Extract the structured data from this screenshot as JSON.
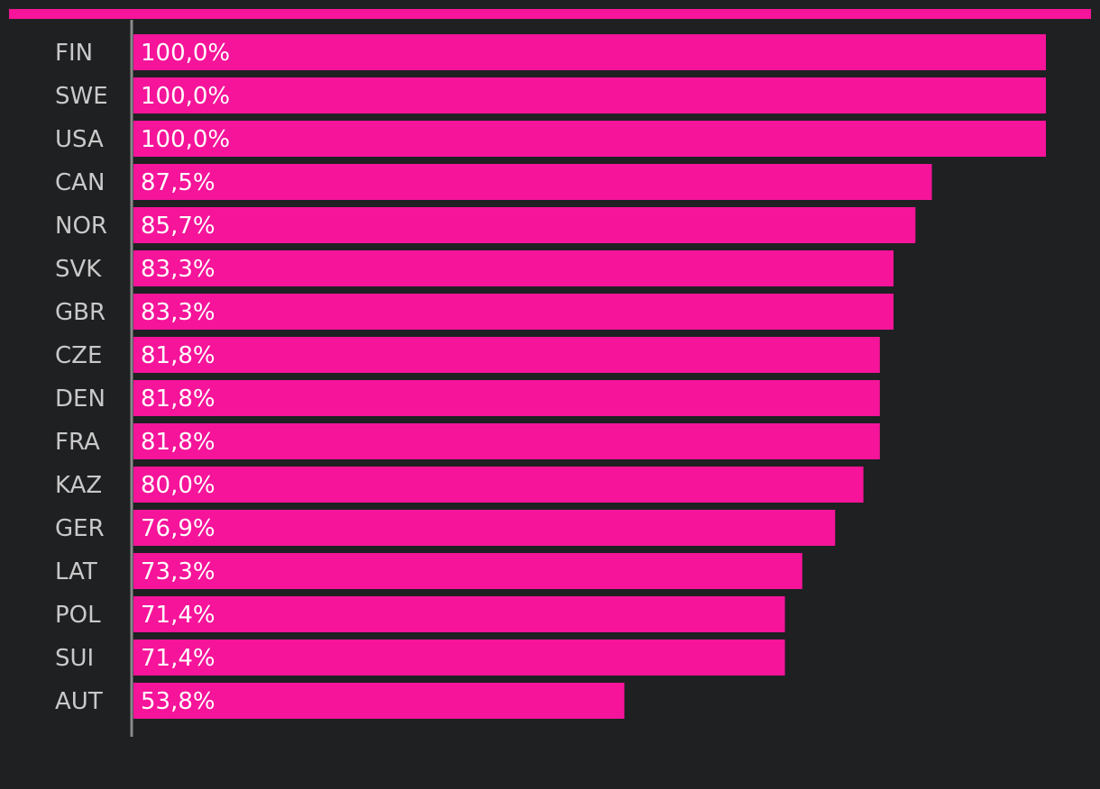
{
  "colors": {
    "background": "#1f2022",
    "bar": "#f5149a",
    "axis": "#8a8a8a",
    "category_text": "#c9c9c9",
    "value_text": "#ffffff"
  },
  "chart_data": {
    "type": "bar",
    "orientation": "horizontal",
    "categories": [
      "FIN",
      "SWE",
      "USA",
      "CAN",
      "NOR",
      "SVK",
      "GBR",
      "CZE",
      "DEN",
      "FRA",
      "KAZ",
      "GER",
      "LAT",
      "POL",
      "SUI",
      "AUT"
    ],
    "values": [
      100.0,
      100.0,
      100.0,
      87.5,
      85.7,
      83.3,
      83.3,
      81.8,
      81.8,
      81.8,
      80.0,
      76.9,
      73.3,
      71.4,
      71.4,
      53.8
    ],
    "value_labels": [
      "100,0%",
      "100,0%",
      "100,0%",
      "87,5%",
      "85,7%",
      "83,3%",
      "83,3%",
      "81,8%",
      "81,8%",
      "81,8%",
      "80,0%",
      "76,9%",
      "73,3%",
      "71,4%",
      "71,4%",
      "53,8%"
    ],
    "xlim": [
      0,
      100
    ],
    "title": "",
    "xlabel": "",
    "ylabel": "",
    "grid": false,
    "legend": "none"
  }
}
